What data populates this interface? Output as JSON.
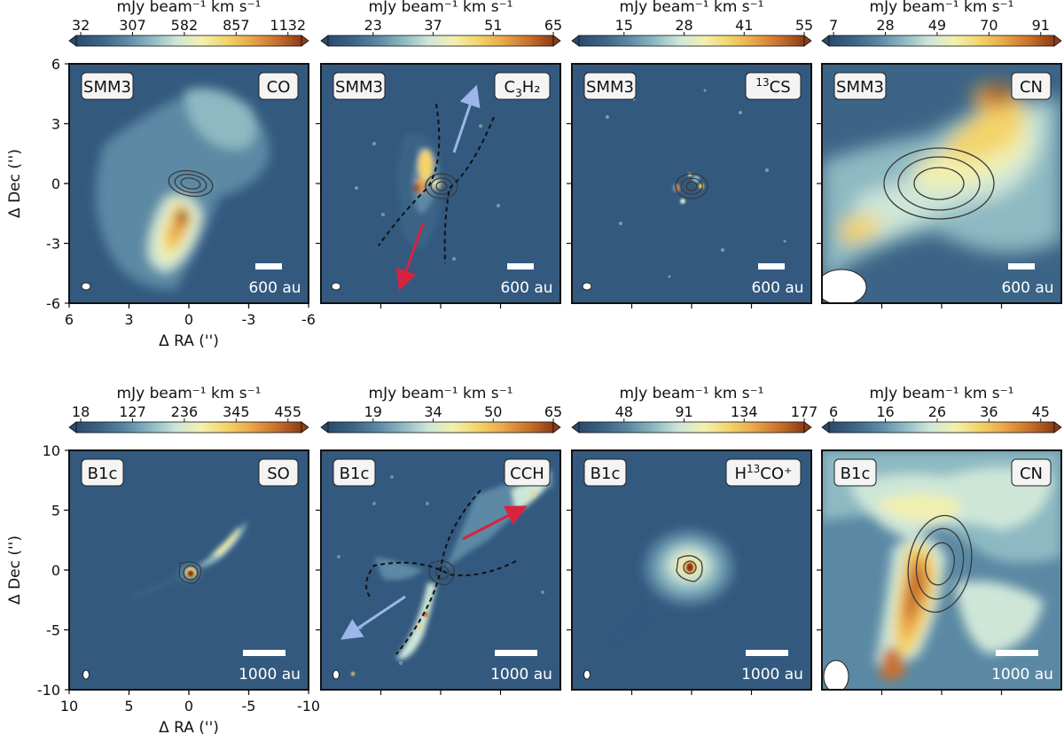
{
  "chart_data": {
    "type": "image-panels",
    "rows": [
      {
        "source": "SMM3",
        "xlabel": "Δ RA ('')",
        "ylabel": "Δ Dec ('')",
        "xticks": [
          "6",
          "3",
          "0",
          "-3",
          "-6"
        ],
        "yticks": [
          "6",
          "3",
          "0",
          "-3",
          "-6"
        ],
        "panels": [
          {
            "label": "SMM3",
            "molecule": "CO",
            "molecule_sub": "",
            "molecule_sup": "",
            "molecule_tail": "",
            "scalebar": "600 au",
            "colorbar_label": "mJy beam⁻¹ km s⁻¹",
            "colorbar_ticks": [
              "32",
              "307",
              "582",
              "857",
              "1132"
            ]
          },
          {
            "label": "SMM3",
            "molecule": "C",
            "molecule_sub": "3",
            "molecule_sup": "",
            "molecule_tail": "H₂",
            "scalebar": "600 au",
            "colorbar_label": "mJy beam⁻¹ km s⁻¹",
            "colorbar_ticks": [
              "23",
              "37",
              "51",
              "65"
            ],
            "outflow_arrows": [
              "blue",
              "red"
            ]
          },
          {
            "label": "SMM3",
            "molecule": "CS",
            "molecule_sub": "",
            "molecule_sup": "13",
            "molecule_tail": "",
            "scalebar": "600 au",
            "colorbar_label": "mJy beam⁻¹ km s⁻¹",
            "colorbar_ticks": [
              "15",
              "28",
              "41",
              "55"
            ]
          },
          {
            "label": "SMM3",
            "molecule": "CN",
            "molecule_sub": "",
            "molecule_sup": "",
            "molecule_tail": "",
            "scalebar": "600 au",
            "colorbar_label": "mJy beam⁻¹ km s⁻¹",
            "colorbar_ticks": [
              "7",
              "28",
              "49",
              "70",
              "91"
            ]
          }
        ]
      },
      {
        "source": "B1c",
        "xlabel": "Δ RA ('')",
        "ylabel": "Δ Dec ('')",
        "xticks": [
          "10",
          "5",
          "0",
          "-5",
          "-10"
        ],
        "yticks": [
          "10",
          "5",
          "0",
          "-5",
          "-10"
        ],
        "panels": [
          {
            "label": "B1c",
            "molecule": "SO",
            "molecule_sub": "",
            "molecule_sup": "",
            "molecule_tail": "",
            "scalebar": "1000 au",
            "colorbar_label": "mJy beam⁻¹ km s⁻¹",
            "colorbar_ticks": [
              "18",
              "127",
              "236",
              "345",
              "455"
            ]
          },
          {
            "label": "B1c",
            "molecule": "CCH",
            "molecule_sub": "",
            "molecule_sup": "",
            "molecule_tail": "",
            "scalebar": "1000 au",
            "colorbar_label": "mJy beam⁻¹ km s⁻¹",
            "colorbar_ticks": [
              "19",
              "34",
              "50",
              "65"
            ],
            "outflow_arrows": [
              "red",
              "blue"
            ]
          },
          {
            "label": "B1c",
            "molecule": "H",
            "molecule_sub": "",
            "molecule_sup": "13",
            "molecule_tail": "CO⁺",
            "scalebar": "1000 au",
            "colorbar_label": "mJy beam⁻¹ km s⁻¹",
            "colorbar_ticks": [
              "48",
              "91",
              "134",
              "177"
            ]
          },
          {
            "label": "B1c",
            "molecule": "CN",
            "molecule_sub": "",
            "molecule_sup": "",
            "molecule_tail": "",
            "scalebar": "1000 au",
            "colorbar_label": "mJy beam⁻¹ km s⁻¹",
            "colorbar_ticks": [
              "6",
              "16",
              "26",
              "36",
              "45"
            ]
          }
        ]
      }
    ],
    "colormap": [
      "#2c4a6e",
      "#3b6486",
      "#5b89a4",
      "#8db9c2",
      "#cde6d8",
      "#f2f0b0",
      "#f3d46a",
      "#e8a64a",
      "#c9712d",
      "#8c3d16"
    ],
    "background_color": "#33597f",
    "contour_color": "#3a3a3a",
    "blue_arrow_color": "#9bb6e8",
    "red_arrow_color": "#d6243f"
  }
}
